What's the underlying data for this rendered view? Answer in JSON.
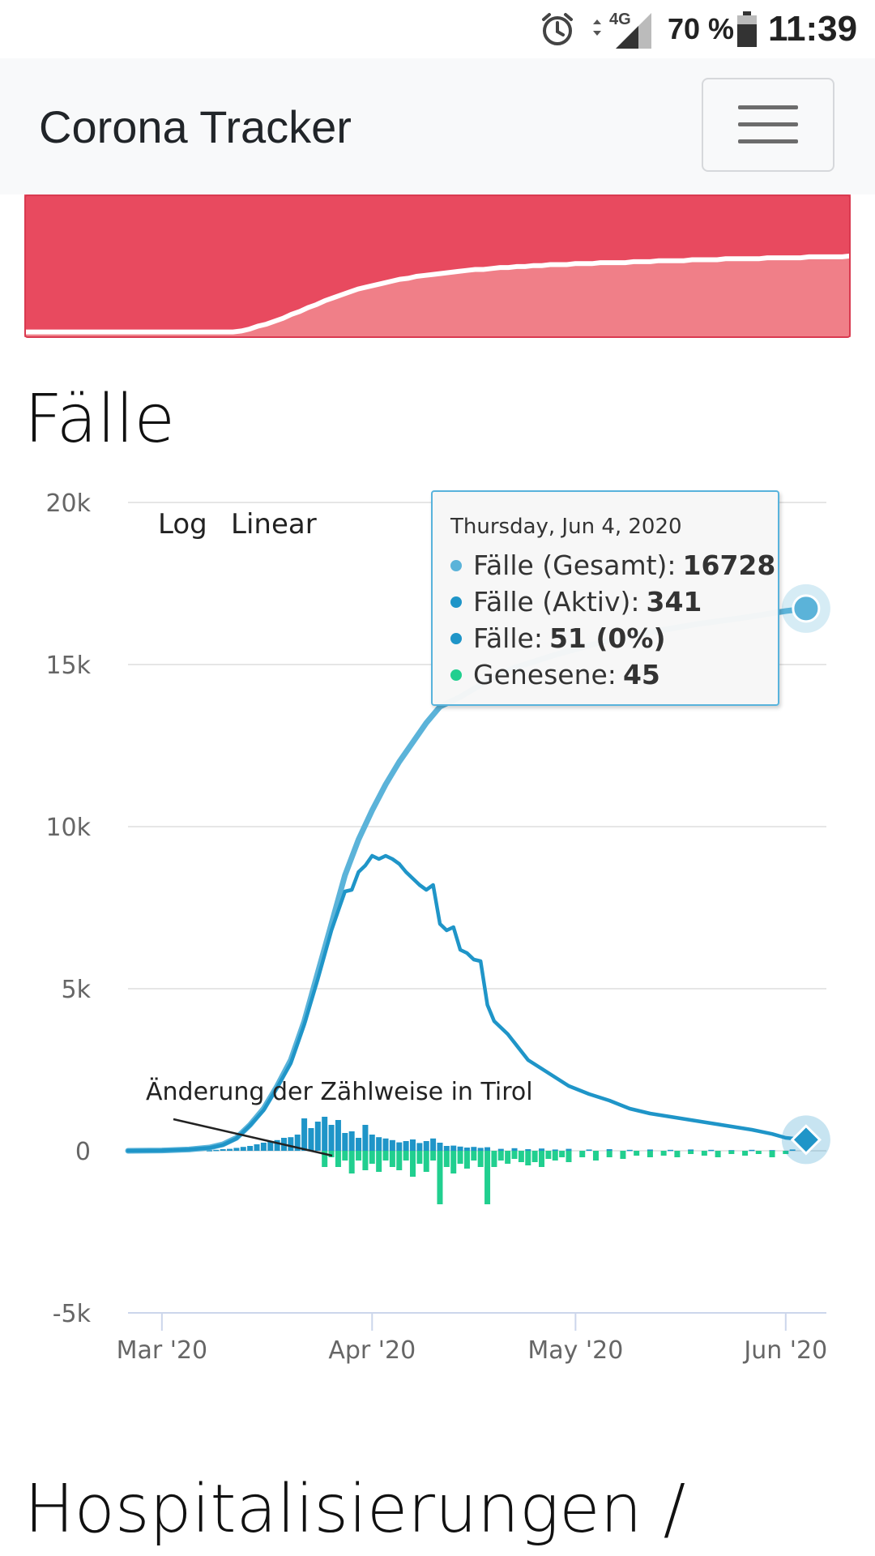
{
  "status_bar": {
    "battery_pct": "70 %",
    "time": "11:39",
    "network": "4G",
    "icons": [
      "alarm-clock-icon",
      "data-arrows-icon",
      "signal-icon",
      "battery-icon"
    ]
  },
  "navbar": {
    "title": "Corona Tracker",
    "toggler_icon": "hamburger-menu-icon"
  },
  "colors": {
    "red_area": "#e84a5f",
    "red_area_light": "#f07f88",
    "total_line": "#5bb3d9",
    "active_line": "#1f95c8",
    "new_cases_bar": "#1f95c8",
    "recovered_bar": "#21cf8f",
    "grid": "#e6e6e6"
  },
  "red_chart": {
    "type": "area",
    "values": [
      0.02,
      0.02,
      0.02,
      0.02,
      0.02,
      0.02,
      0.02,
      0.02,
      0.02,
      0.02,
      0.02,
      0.02,
      0.02,
      0.02,
      0.02,
      0.02,
      0.02,
      0.02,
      0.02,
      0.02,
      0.02,
      0.02,
      0.02,
      0.02,
      0.02,
      0.02,
      0.03,
      0.05,
      0.08,
      0.1,
      0.13,
      0.16,
      0.2,
      0.23,
      0.27,
      0.3,
      0.34,
      0.37,
      0.4,
      0.43,
      0.46,
      0.48,
      0.5,
      0.52,
      0.54,
      0.56,
      0.57,
      0.59,
      0.6,
      0.61,
      0.62,
      0.63,
      0.64,
      0.65,
      0.66,
      0.66,
      0.67,
      0.68,
      0.68,
      0.69,
      0.69,
      0.7,
      0.7,
      0.71,
      0.71,
      0.71,
      0.72,
      0.72,
      0.72,
      0.73,
      0.73,
      0.73,
      0.73,
      0.74,
      0.74,
      0.74,
      0.75,
      0.75,
      0.75,
      0.75,
      0.76,
      0.76,
      0.76,
      0.76,
      0.77,
      0.77,
      0.77,
      0.77,
      0.77,
      0.78,
      0.78,
      0.78,
      0.78,
      0.78,
      0.79,
      0.79,
      0.79,
      0.79,
      0.79,
      0.8
    ]
  },
  "section_cases_title": "Fälle",
  "scale_buttons": {
    "log": "Log",
    "linear": "Linear"
  },
  "annotation": "Änderung der Zählweise in Tirol",
  "tooltip": {
    "date": "Thursday, Jun 4, 2020",
    "rows": [
      {
        "label": "Fälle (Gesamt):",
        "value": "16728",
        "color": "#5bb3d9"
      },
      {
        "label": "Fälle (Aktiv):",
        "value": "341",
        "color": "#1f95c8"
      },
      {
        "label": "Fälle:",
        "value": "51 (0%)",
        "color": "#1f95c8"
      },
      {
        "label": "Genesene:",
        "value": "45",
        "color": "#21cf8f"
      }
    ]
  },
  "chart_data": {
    "type": "line",
    "ylim": [
      -5000,
      20000
    ],
    "y_ticks": [
      {
        "value": 20000,
        "label": "20k"
      },
      {
        "value": 15000,
        "label": "15k"
      },
      {
        "value": 10000,
        "label": "10k"
      },
      {
        "value": 5000,
        "label": "5k"
      },
      {
        "value": 0,
        "label": "0"
      },
      {
        "value": -5000,
        "label": "-5k"
      }
    ],
    "x_ticks": [
      {
        "date": "2020-03-01",
        "label": "Mar '20"
      },
      {
        "date": "2020-04-01",
        "label": "Apr '20"
      },
      {
        "date": "2020-05-01",
        "label": "May '20"
      },
      {
        "date": "2020-06-01",
        "label": "Jun '20"
      }
    ],
    "x_range": [
      "2020-02-25",
      "2020-06-07"
    ],
    "series": [
      {
        "name": "Fälle (Gesamt)",
        "kind": "line",
        "points": [
          [
            "2020-02-25",
            0
          ],
          [
            "2020-03-01",
            10
          ],
          [
            "2020-03-05",
            40
          ],
          [
            "2020-03-08",
            100
          ],
          [
            "2020-03-10",
            200
          ],
          [
            "2020-03-12",
            400
          ],
          [
            "2020-03-14",
            800
          ],
          [
            "2020-03-16",
            1300
          ],
          [
            "2020-03-18",
            2000
          ],
          [
            "2020-03-20",
            2800
          ],
          [
            "2020-03-22",
            4000
          ],
          [
            "2020-03-24",
            5500
          ],
          [
            "2020-03-26",
            7000
          ],
          [
            "2020-03-28",
            8500
          ],
          [
            "2020-03-30",
            9600
          ],
          [
            "2020-04-01",
            10500
          ],
          [
            "2020-04-03",
            11300
          ],
          [
            "2020-04-05",
            12000
          ],
          [
            "2020-04-07",
            12600
          ],
          [
            "2020-04-09",
            13200
          ],
          [
            "2020-04-11",
            13700
          ],
          [
            "2020-04-14",
            14000
          ],
          [
            "2020-04-18",
            14500
          ],
          [
            "2020-04-22",
            14900
          ],
          [
            "2020-04-28",
            15300
          ],
          [
            "2020-05-05",
            15700
          ],
          [
            "2020-05-12",
            16000
          ],
          [
            "2020-05-19",
            16250
          ],
          [
            "2020-05-26",
            16450
          ],
          [
            "2020-06-01",
            16650
          ],
          [
            "2020-06-04",
            16728
          ]
        ]
      },
      {
        "name": "Fälle (Aktiv)",
        "kind": "line",
        "points": [
          [
            "2020-02-25",
            0
          ],
          [
            "2020-03-01",
            10
          ],
          [
            "2020-03-05",
            40
          ],
          [
            "2020-03-08",
            90
          ],
          [
            "2020-03-10",
            180
          ],
          [
            "2020-03-12",
            380
          ],
          [
            "2020-03-14",
            780
          ],
          [
            "2020-03-16",
            1250
          ],
          [
            "2020-03-18",
            1950
          ],
          [
            "2020-03-20",
            2700
          ],
          [
            "2020-03-22",
            3900
          ],
          [
            "2020-03-24",
            5300
          ],
          [
            "2020-03-26",
            6800
          ],
          [
            "2020-03-27",
            7400
          ],
          [
            "2020-03-28",
            8000
          ],
          [
            "2020-03-29",
            8050
          ],
          [
            "2020-03-30",
            8600
          ],
          [
            "2020-03-31",
            8800
          ],
          [
            "2020-04-01",
            9100
          ],
          [
            "2020-04-02",
            9000
          ],
          [
            "2020-04-03",
            9100
          ],
          [
            "2020-04-04",
            9000
          ],
          [
            "2020-04-05",
            8850
          ],
          [
            "2020-04-06",
            8600
          ],
          [
            "2020-04-07",
            8400
          ],
          [
            "2020-04-08",
            8200
          ],
          [
            "2020-04-09",
            8050
          ],
          [
            "2020-04-10",
            8200
          ],
          [
            "2020-04-11",
            7000
          ],
          [
            "2020-04-12",
            6800
          ],
          [
            "2020-04-13",
            6900
          ],
          [
            "2020-04-14",
            6200
          ],
          [
            "2020-04-15",
            6100
          ],
          [
            "2020-04-16",
            5900
          ],
          [
            "2020-04-17",
            5850
          ],
          [
            "2020-04-18",
            4500
          ],
          [
            "2020-04-19",
            4000
          ],
          [
            "2020-04-21",
            3600
          ],
          [
            "2020-04-24",
            2800
          ],
          [
            "2020-04-27",
            2400
          ],
          [
            "2020-04-30",
            2000
          ],
          [
            "2020-05-03",
            1750
          ],
          [
            "2020-05-06",
            1550
          ],
          [
            "2020-05-09",
            1300
          ],
          [
            "2020-05-12",
            1150
          ],
          [
            "2020-05-15",
            1050
          ],
          [
            "2020-05-18",
            950
          ],
          [
            "2020-05-21",
            850
          ],
          [
            "2020-05-24",
            750
          ],
          [
            "2020-05-27",
            650
          ],
          [
            "2020-05-30",
            520
          ],
          [
            "2020-06-01",
            400
          ],
          [
            "2020-06-04",
            341
          ]
        ]
      },
      {
        "name": "Fälle",
        "kind": "bar",
        "points": [
          [
            "2020-03-08",
            20
          ],
          [
            "2020-03-09",
            30
          ],
          [
            "2020-03-10",
            50
          ],
          [
            "2020-03-11",
            60
          ],
          [
            "2020-03-12",
            90
          ],
          [
            "2020-03-13",
            120
          ],
          [
            "2020-03-14",
            150
          ],
          [
            "2020-03-15",
            200
          ],
          [
            "2020-03-16",
            250
          ],
          [
            "2020-03-17",
            300
          ],
          [
            "2020-03-18",
            330
          ],
          [
            "2020-03-19",
            400
          ],
          [
            "2020-03-20",
            420
          ],
          [
            "2020-03-21",
            500
          ],
          [
            "2020-03-22",
            1000
          ],
          [
            "2020-03-23",
            700
          ],
          [
            "2020-03-24",
            900
          ],
          [
            "2020-03-25",
            1050
          ],
          [
            "2020-03-26",
            800
          ],
          [
            "2020-03-27",
            950
          ],
          [
            "2020-03-28",
            550
          ],
          [
            "2020-03-29",
            600
          ],
          [
            "2020-03-30",
            400
          ],
          [
            "2020-03-31",
            800
          ],
          [
            "2020-04-01",
            500
          ],
          [
            "2020-04-02",
            420
          ],
          [
            "2020-04-03",
            380
          ],
          [
            "2020-04-04",
            330
          ],
          [
            "2020-04-05",
            260
          ],
          [
            "2020-04-06",
            300
          ],
          [
            "2020-04-07",
            350
          ],
          [
            "2020-04-08",
            240
          ],
          [
            "2020-04-09",
            300
          ],
          [
            "2020-04-10",
            380
          ],
          [
            "2020-04-11",
            250
          ],
          [
            "2020-04-12",
            150
          ],
          [
            "2020-04-13",
            160
          ],
          [
            "2020-04-14",
            130
          ],
          [
            "2020-04-15",
            100
          ],
          [
            "2020-04-16",
            120
          ],
          [
            "2020-04-17",
            90
          ],
          [
            "2020-04-18",
            110
          ],
          [
            "2020-04-20",
            60
          ],
          [
            "2020-04-22",
            80
          ],
          [
            "2020-04-24",
            50
          ],
          [
            "2020-04-26",
            70
          ],
          [
            "2020-04-28",
            40
          ],
          [
            "2020-04-30",
            60
          ],
          [
            "2020-05-03",
            40
          ],
          [
            "2020-05-06",
            50
          ],
          [
            "2020-05-09",
            30
          ],
          [
            "2020-05-12",
            40
          ],
          [
            "2020-05-15",
            30
          ],
          [
            "2020-05-18",
            40
          ],
          [
            "2020-05-21",
            30
          ],
          [
            "2020-05-24",
            20
          ],
          [
            "2020-05-27",
            30
          ],
          [
            "2020-05-30",
            20
          ],
          [
            "2020-06-02",
            40
          ],
          [
            "2020-06-04",
            51
          ]
        ]
      },
      {
        "name": "Genesene",
        "kind": "bar",
        "points": [
          [
            "2020-03-25",
            -500
          ],
          [
            "2020-03-26",
            -200
          ],
          [
            "2020-03-27",
            -500
          ],
          [
            "2020-03-28",
            -300
          ],
          [
            "2020-03-29",
            -700
          ],
          [
            "2020-03-30",
            -300
          ],
          [
            "2020-03-31",
            -600
          ],
          [
            "2020-04-01",
            -400
          ],
          [
            "2020-04-02",
            -650
          ],
          [
            "2020-04-03",
            -300
          ],
          [
            "2020-04-04",
            -500
          ],
          [
            "2020-04-05",
            -600
          ],
          [
            "2020-04-06",
            -300
          ],
          [
            "2020-04-07",
            -800
          ],
          [
            "2020-04-08",
            -400
          ],
          [
            "2020-04-09",
            -650
          ],
          [
            "2020-04-10",
            -300
          ],
          [
            "2020-04-11",
            -1650
          ],
          [
            "2020-04-12",
            -500
          ],
          [
            "2020-04-13",
            -700
          ],
          [
            "2020-04-14",
            -400
          ],
          [
            "2020-04-15",
            -550
          ],
          [
            "2020-04-16",
            -300
          ],
          [
            "2020-04-17",
            -500
          ],
          [
            "2020-04-18",
            -1650
          ],
          [
            "2020-04-19",
            -500
          ],
          [
            "2020-04-20",
            -300
          ],
          [
            "2020-04-21",
            -400
          ],
          [
            "2020-04-22",
            -250
          ],
          [
            "2020-04-23",
            -350
          ],
          [
            "2020-04-24",
            -450
          ],
          [
            "2020-04-25",
            -350
          ],
          [
            "2020-04-26",
            -500
          ],
          [
            "2020-04-27",
            -250
          ],
          [
            "2020-04-28",
            -300
          ],
          [
            "2020-04-29",
            -200
          ],
          [
            "2020-04-30",
            -350
          ],
          [
            "2020-05-02",
            -200
          ],
          [
            "2020-05-04",
            -300
          ],
          [
            "2020-05-06",
            -200
          ],
          [
            "2020-05-08",
            -250
          ],
          [
            "2020-05-10",
            -150
          ],
          [
            "2020-05-12",
            -200
          ],
          [
            "2020-05-14",
            -150
          ],
          [
            "2020-05-16",
            -200
          ],
          [
            "2020-05-18",
            -100
          ],
          [
            "2020-05-20",
            -150
          ],
          [
            "2020-05-22",
            -200
          ],
          [
            "2020-05-24",
            -100
          ],
          [
            "2020-05-26",
            -150
          ],
          [
            "2020-05-28",
            -100
          ],
          [
            "2020-05-30",
            -200
          ],
          [
            "2020-06-01",
            -100
          ],
          [
            "2020-06-04",
            -45
          ]
        ]
      }
    ]
  },
  "section_hosp_title": "Hospitalisierungen /"
}
